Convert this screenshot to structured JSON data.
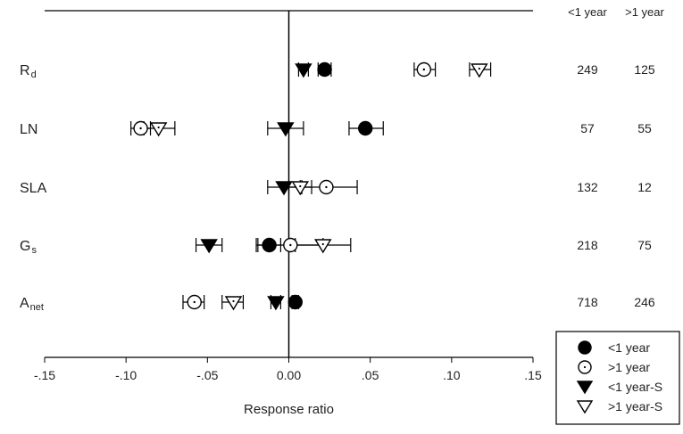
{
  "chart_data": {
    "type": "scatter",
    "subtype": "forest-plot",
    "xlabel": "Response ratio",
    "xlim": [
      -0.15,
      0.15
    ],
    "xticks": [
      -0.15,
      -0.1,
      -0.05,
      0.0,
      0.05,
      0.1,
      0.15
    ],
    "xtick_labels": [
      "-.15",
      "-.10",
      "-.05",
      "0.00",
      ".05",
      ".10",
      ".15"
    ],
    "grid": false,
    "legend_position": "bottom-right",
    "categories": [
      {
        "label": "R",
        "sub": "d"
      },
      {
        "label": "LN",
        "sub": ""
      },
      {
        "label": "SLA",
        "sub": ""
      },
      {
        "label": "G",
        "sub": "s"
      },
      {
        "label": "A",
        "sub": "net"
      }
    ],
    "count_headers": [
      "<1 year",
      ">1 year"
    ],
    "counts": [
      [
        "249",
        "125"
      ],
      [
        "57",
        "55"
      ],
      [
        "132",
        "12"
      ],
      [
        "218",
        "75"
      ],
      [
        "718",
        "246"
      ]
    ],
    "series": [
      {
        "name": "<1 year",
        "marker": "filled-circle",
        "values": [
          {
            "y": 0.022,
            "lo": 0.018,
            "hi": 0.026
          },
          {
            "y": 0.047,
            "lo": 0.037,
            "hi": 0.058
          },
          {
            "y": 0.0,
            "lo": 0.0,
            "hi": 0.0
          },
          {
            "y": -0.012,
            "lo": -0.019,
            "hi": -0.005
          },
          {
            "y": 0.004,
            "lo": 0.002,
            "hi": 0.006
          }
        ]
      },
      {
        "name": ">1 year",
        "marker": "open-circle",
        "values": [
          {
            "y": 0.083,
            "lo": 0.077,
            "hi": 0.09
          },
          {
            "y": -0.091,
            "lo": -0.097,
            "hi": -0.085
          },
          {
            "y": 0.023,
            "lo": 0.008,
            "hi": 0.042
          },
          {
            "y": 0.001,
            "lo": -0.02,
            "hi": 0.021
          },
          {
            "y": -0.058,
            "lo": -0.065,
            "hi": -0.052
          }
        ]
      },
      {
        "name": "<1 year-S",
        "marker": "filled-triangle",
        "values": [
          {
            "y": 0.009,
            "lo": 0.006,
            "hi": 0.012
          },
          {
            "y": -0.002,
            "lo": -0.013,
            "hi": 0.009
          },
          {
            "y": -0.003,
            "lo": -0.013,
            "hi": 0.007
          },
          {
            "y": -0.049,
            "lo": -0.057,
            "hi": -0.041
          },
          {
            "y": -0.008,
            "lo": -0.011,
            "hi": -0.005
          }
        ]
      },
      {
        "name": ">1 year-S",
        "marker": "open-triangle",
        "values": [
          {
            "y": 0.117,
            "lo": 0.111,
            "hi": 0.124
          },
          {
            "y": -0.08,
            "lo": -0.089,
            "hi": -0.07
          },
          {
            "y": 0.007,
            "lo": 0.0,
            "hi": 0.014
          },
          {
            "y": 0.021,
            "lo": 0.004,
            "hi": 0.038
          },
          {
            "y": -0.034,
            "lo": -0.041,
            "hi": -0.028
          }
        ]
      }
    ]
  }
}
